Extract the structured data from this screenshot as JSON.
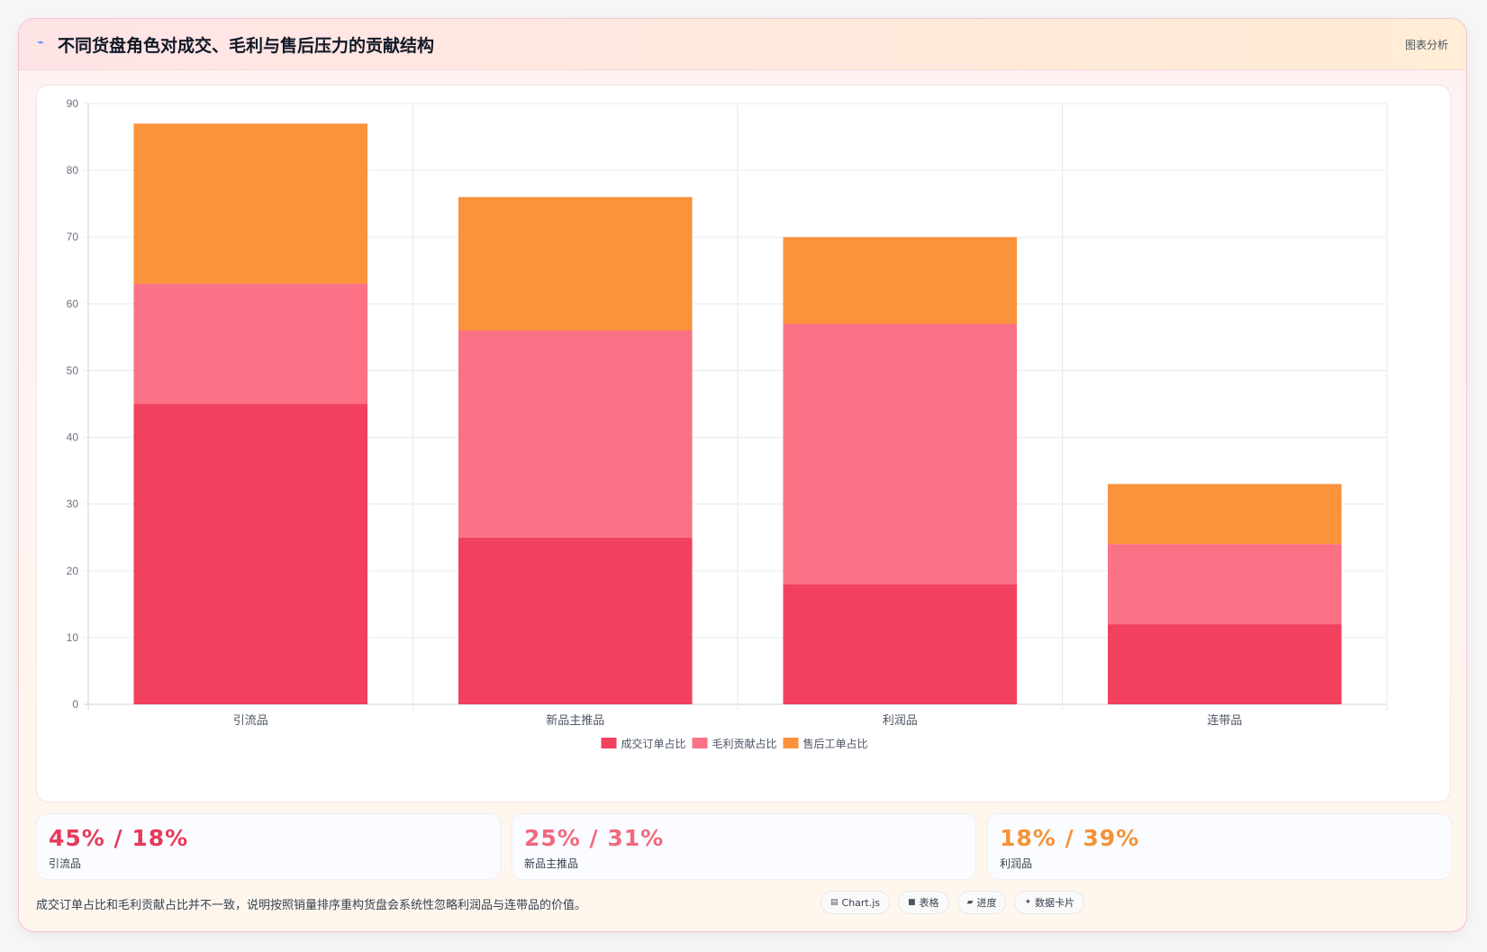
{
  "header": {
    "icon": "trend-icon",
    "title": "不同货盘角色对成交、毛利与售后压力的贡献结构",
    "badge": "图表分析"
  },
  "chart_data": {
    "type": "bar",
    "stacked": true,
    "categories": [
      "引流品",
      "新品主推品",
      "利润品",
      "连带品"
    ],
    "series": [
      {
        "name": "成交订单占比",
        "values": [
          45,
          25,
          18,
          12
        ],
        "color": "#f2405f"
      },
      {
        "name": "毛利贡献占比",
        "values": [
          18,
          31,
          39,
          12
        ],
        "color": "#fb7185"
      },
      {
        "name": "售后工单占比",
        "values": [
          24,
          20,
          13,
          9
        ],
        "color": "#fb923c"
      }
    ],
    "ylim": [
      0,
      90
    ],
    "yticks": [
      0,
      10,
      20,
      30,
      40,
      50,
      60,
      70,
      80,
      90
    ],
    "grid": true,
    "legend": "bottom"
  },
  "stats": [
    {
      "value": "45% / 18%",
      "label": "引流品",
      "color": "#e8395b"
    },
    {
      "value": "25% / 31%",
      "label": "新品主推品",
      "color": "#f0697f"
    },
    {
      "value": "18% / 39%",
      "label": "利润品",
      "color": "#f59237"
    }
  ],
  "footer": {
    "note": "成交订单占比和毛利贡献占比并不一致，说明按照销量排序重构货盘会系统性忽略利润品与连带品的价值。",
    "tags": [
      {
        "icon": "table-icon",
        "glyph": "▤",
        "label": "Chart.js"
      },
      {
        "icon": "grid-icon",
        "glyph": "■",
        "label": "表格"
      },
      {
        "icon": "progress-icon",
        "glyph": "▰",
        "label": "进度"
      },
      {
        "icon": "sparkle-icon",
        "glyph": "✦",
        "label": "数据卡片"
      }
    ]
  }
}
